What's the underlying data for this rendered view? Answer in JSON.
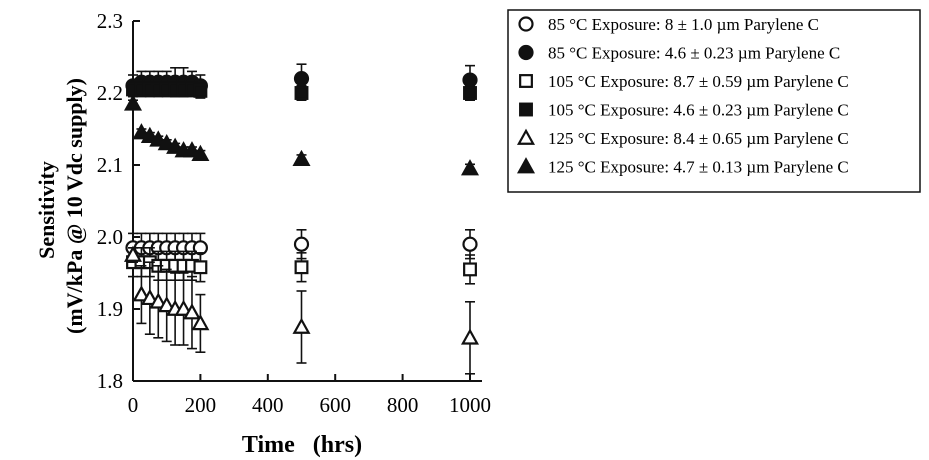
{
  "chart_data": {
    "type": "scatter",
    "title": "",
    "xlabel": "Time   (hrs)",
    "ylabel_line1": "Sensitivity",
    "ylabel_line2": "(mV/kPa   @  10  Vdc  supply)",
    "xlim": [
      0,
      1000
    ],
    "ylim": [
      1.8,
      2.3
    ],
    "x_ticks": [
      0,
      200,
      400,
      600,
      800,
      1000
    ],
    "x_tick_labels": [
      "0",
      "200",
      "400",
      "600",
      "800",
      "1000"
    ],
    "y_ticks": [
      1.8,
      1.9,
      2.0,
      2.1,
      2.2,
      2.3
    ],
    "y_tick_labels": [
      "1.8",
      "1.9",
      "2.0",
      "2.1",
      "2.2",
      "2.3"
    ],
    "grid": false,
    "legend_position": "top-right, outside plot",
    "series": [
      {
        "name": "85 °C  Exposure:  8 ± 1.0 µm Parylene C",
        "marker": "circle-open",
        "x": [
          0,
          25,
          50,
          75,
          100,
          125,
          150,
          175,
          200,
          500,
          1000
        ],
        "y": [
          1.985,
          1.985,
          1.985,
          1.985,
          1.985,
          1.985,
          1.985,
          1.985,
          1.985,
          1.99,
          1.99
        ],
        "err": [
          0.02,
          0.02,
          0.02,
          0.02,
          0.02,
          0.02,
          0.02,
          0.02,
          0.02,
          0.02,
          0.02
        ]
      },
      {
        "name": "85 °C  Exposure:  4.6 ± 0.23 µm Parylene C",
        "marker": "circle-filled",
        "x": [
          0,
          25,
          50,
          75,
          100,
          125,
          150,
          175,
          200,
          500,
          1000
        ],
        "y": [
          2.21,
          2.215,
          2.215,
          2.215,
          2.215,
          2.215,
          2.215,
          2.215,
          2.21,
          2.22,
          2.218
        ],
        "err": [
          0.015,
          0.015,
          0.015,
          0.015,
          0.015,
          0.02,
          0.02,
          0.015,
          0.015,
          0.02,
          0.02
        ]
      },
      {
        "name": "105 °C Exposure:  8.7 ± 0.59 µm Parylene C",
        "marker": "square-open",
        "x": [
          0,
          25,
          50,
          75,
          100,
          125,
          150,
          175,
          200,
          500,
          1000
        ],
        "y": [
          1.965,
          1.965,
          1.965,
          1.96,
          1.96,
          1.96,
          1.96,
          1.96,
          1.958,
          1.958,
          1.955
        ],
        "err": [
          0.02,
          0.02,
          0.02,
          0.02,
          0.02,
          0.02,
          0.02,
          0.02,
          0.02,
          0.02,
          0.02
        ]
      },
      {
        "name": "105 °C Exposure:  4.6 ± 0.23 µm Parylene C",
        "marker": "square-filled",
        "x": [
          0,
          25,
          50,
          75,
          100,
          125,
          150,
          175,
          200,
          500,
          1000
        ],
        "y": [
          2.205,
          2.205,
          2.205,
          2.205,
          2.205,
          2.205,
          2.205,
          2.205,
          2.203,
          2.2,
          2.2
        ],
        "err": [
          0.01,
          0.01,
          0.01,
          0.01,
          0.01,
          0.01,
          0.01,
          0.01,
          0.01,
          0.01,
          0.01
        ]
      },
      {
        "name": "125 °C Exposure:  8.4 ± 0.65 µm Parylene C",
        "marker": "triangle-open",
        "x": [
          0,
          25,
          50,
          75,
          100,
          125,
          150,
          175,
          200,
          500,
          1000
        ],
        "y": [
          1.975,
          1.92,
          1.915,
          1.91,
          1.905,
          1.9,
          1.9,
          1.895,
          1.88,
          1.875,
          1.86
        ],
        "err": [
          0.01,
          0.04,
          0.05,
          0.05,
          0.05,
          0.05,
          0.05,
          0.05,
          0.04,
          0.05,
          0.05
        ]
      },
      {
        "name": "125 °C Exposure:  4.7 ± 0.13 µm Parylene C",
        "marker": "triangle-filled",
        "x": [
          0,
          25,
          50,
          75,
          100,
          125,
          150,
          175,
          200,
          500,
          1000
        ],
        "y": [
          2.185,
          2.145,
          2.14,
          2.135,
          2.13,
          2.125,
          2.12,
          2.12,
          2.115,
          2.108,
          2.095
        ],
        "err": [
          0.005,
          0.005,
          0.005,
          0.005,
          0.005,
          0.005,
          0.005,
          0.005,
          0.005,
          0.006,
          0.006
        ]
      }
    ]
  }
}
